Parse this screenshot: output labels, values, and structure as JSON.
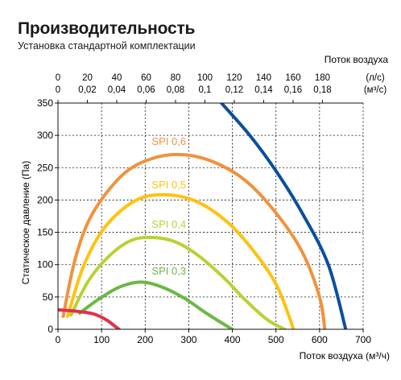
{
  "chart_data": {
    "type": "line",
    "title": "Производительность",
    "subtitle": "Установка стандартной комплектации",
    "xlabel": "Поток воздуха (м³/ч)",
    "ylabel": "Статическое давление (Па)",
    "xlim": [
      0,
      700
    ],
    "ylim": [
      0,
      350
    ],
    "x_ticks": [
      0,
      100,
      200,
      300,
      400,
      500,
      600,
      700
    ],
    "y_ticks": [
      0,
      50,
      100,
      150,
      200,
      250,
      300,
      350
    ],
    "top_axis": {
      "label": "Поток воздуха",
      "row1": {
        "unit": "(л/с)",
        "ticks": [
          "0",
          "20",
          "40",
          "60",
          "80",
          "100",
          "120",
          "140",
          "160",
          "180"
        ]
      },
      "row2": {
        "unit": "(м³/с)",
        "ticks": [
          "0",
          "0,02",
          "0,04",
          "0,06",
          "0,08",
          "0,1",
          "0,12",
          "0,14",
          "0,16",
          "0,18"
        ]
      }
    },
    "grid": true,
    "series": [
      {
        "name": "SPI 0,6",
        "color": "#f0923c",
        "points": [
          [
            12,
            20
          ],
          [
            40,
            110
          ],
          [
            80,
            180
          ],
          [
            150,
            240
          ],
          [
            220,
            265
          ],
          [
            290,
            270
          ],
          [
            360,
            258
          ],
          [
            430,
            230
          ],
          [
            500,
            180
          ],
          [
            560,
            120
          ],
          [
            600,
            50
          ],
          [
            612,
            0
          ]
        ]
      },
      {
        "name": "SPI 0,5",
        "color": "#ffc20e",
        "points": [
          [
            22,
            20
          ],
          [
            60,
            100
          ],
          [
            110,
            160
          ],
          [
            180,
            200
          ],
          [
            250,
            208
          ],
          [
            320,
            197
          ],
          [
            390,
            165
          ],
          [
            450,
            120
          ],
          [
            500,
            70
          ],
          [
            530,
            20
          ],
          [
            540,
            0
          ]
        ]
      },
      {
        "name": "SPI 0,4",
        "color": "#b5d334",
        "points": [
          [
            30,
            22
          ],
          [
            70,
            75
          ],
          [
            120,
            115
          ],
          [
            170,
            138
          ],
          [
            220,
            142
          ],
          [
            270,
            135
          ],
          [
            320,
            115
          ],
          [
            380,
            80
          ],
          [
            430,
            45
          ],
          [
            480,
            15
          ],
          [
            520,
            0
          ]
        ]
      },
      {
        "name": "SPI 0,3",
        "color": "#6bb844",
        "points": [
          [
            50,
            25
          ],
          [
            90,
            45
          ],
          [
            140,
            65
          ],
          [
            190,
            73
          ],
          [
            240,
            65
          ],
          [
            290,
            48
          ],
          [
            340,
            25
          ],
          [
            380,
            8
          ],
          [
            400,
            0
          ]
        ]
      },
      {
        "name": "",
        "color": "#e0314b",
        "points": [
          [
            0,
            30
          ],
          [
            40,
            28
          ],
          [
            80,
            24
          ],
          [
            110,
            15
          ],
          [
            130,
            5
          ],
          [
            140,
            0
          ]
        ]
      },
      {
        "name": "",
        "color": "#0b4f9e",
        "points": [
          [
            375,
            350
          ],
          [
            440,
            300
          ],
          [
            500,
            245
          ],
          [
            560,
            180
          ],
          [
            620,
            100
          ],
          [
            660,
            0
          ]
        ]
      }
    ],
    "annotations": [
      {
        "text": "SPI 0,6",
        "x": 215,
        "y": 285,
        "color": "#f0923c"
      },
      {
        "text": "SPI 0,5",
        "x": 215,
        "y": 218,
        "color": "#ffc20e"
      },
      {
        "text": "SPI 0,4",
        "x": 215,
        "y": 157,
        "color": "#b5d334"
      },
      {
        "text": "SPI 0,3",
        "x": 215,
        "y": 85,
        "color": "#6bb844"
      }
    ]
  }
}
